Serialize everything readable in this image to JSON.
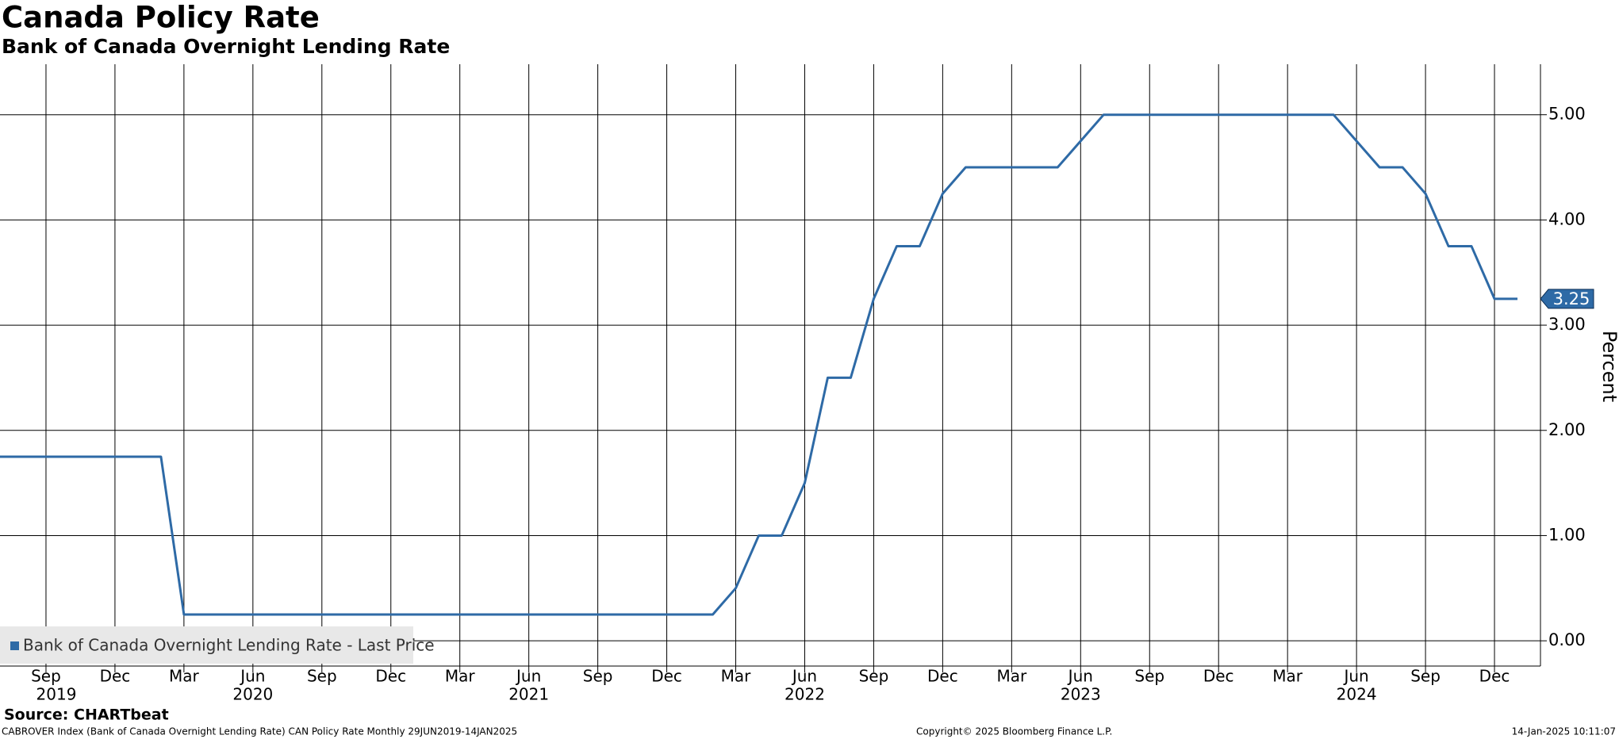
{
  "chart_data": {
    "type": "line",
    "title": "Canada Policy Rate",
    "subtitle": "Bank of Canada Overnight Lending Rate",
    "y_label": "Percent",
    "source": "Source: CHARTbeat",
    "footer_left": "CABROVER Index (Bank of Canada Overnight Lending Rate) CAN Policy Rate  Monthly 29JUN2019-14JAN2025",
    "footer_center": "Copyright© 2025 Bloomberg Finance L.P.",
    "footer_right": "14-Jan-2025 10:11:07",
    "grid": true,
    "legend": "lower left",
    "x": [
      "2019-07",
      "2019-08",
      "2019-09",
      "2019-10",
      "2019-11",
      "2019-12",
      "2020-01",
      "2020-02",
      "2020-03",
      "2020-04",
      "2020-05",
      "2020-06",
      "2020-07",
      "2020-08",
      "2020-09",
      "2020-10",
      "2020-11",
      "2020-12",
      "2021-01",
      "2021-02",
      "2021-03",
      "2021-04",
      "2021-05",
      "2021-06",
      "2021-07",
      "2021-08",
      "2021-09",
      "2021-10",
      "2021-11",
      "2021-12",
      "2022-01",
      "2022-02",
      "2022-03",
      "2022-04",
      "2022-05",
      "2022-06",
      "2022-07",
      "2022-08",
      "2022-09",
      "2022-10",
      "2022-11",
      "2022-12",
      "2023-01",
      "2023-02",
      "2023-03",
      "2023-04",
      "2023-05",
      "2023-06",
      "2023-07",
      "2023-08",
      "2023-09",
      "2023-10",
      "2023-11",
      "2023-12",
      "2024-01",
      "2024-02",
      "2024-03",
      "2024-04",
      "2024-05",
      "2024-06",
      "2024-07",
      "2024-08",
      "2024-09",
      "2024-10",
      "2024-11",
      "2024-12",
      "2025-01"
    ],
    "series": [
      {
        "name": "Bank of Canada Overnight Lending Rate - Last Price",
        "color": "#2e6aa6",
        "values": [
          1.75,
          1.75,
          1.75,
          1.75,
          1.75,
          1.75,
          1.75,
          1.75,
          0.25,
          0.25,
          0.25,
          0.25,
          0.25,
          0.25,
          0.25,
          0.25,
          0.25,
          0.25,
          0.25,
          0.25,
          0.25,
          0.25,
          0.25,
          0.25,
          0.25,
          0.25,
          0.25,
          0.25,
          0.25,
          0.25,
          0.25,
          0.25,
          0.5,
          1.0,
          1.0,
          1.5,
          2.5,
          2.5,
          3.25,
          3.75,
          3.75,
          4.25,
          4.5,
          4.5,
          4.5,
          4.5,
          4.5,
          4.75,
          5.0,
          5.0,
          5.0,
          5.0,
          5.0,
          5.0,
          5.0,
          5.0,
          5.0,
          5.0,
          5.0,
          4.75,
          4.5,
          4.5,
          4.25,
          3.75,
          3.75,
          3.25,
          3.25
        ]
      }
    ],
    "xlim": [
      "2019-07",
      "2025-02"
    ],
    "xticks": [
      {
        "value": "2019-09",
        "label": "Sep"
      },
      {
        "value": "2019-12",
        "label": "Dec"
      },
      {
        "value": "2020-03",
        "label": "Mar"
      },
      {
        "value": "2020-06",
        "label": "Jun"
      },
      {
        "value": "2020-09",
        "label": "Sep"
      },
      {
        "value": "2020-12",
        "label": "Dec"
      },
      {
        "value": "2021-03",
        "label": "Mar"
      },
      {
        "value": "2021-06",
        "label": "Jun"
      },
      {
        "value": "2021-09",
        "label": "Sep"
      },
      {
        "value": "2021-12",
        "label": "Dec"
      },
      {
        "value": "2022-03",
        "label": "Mar"
      },
      {
        "value": "2022-06",
        "label": "Jun"
      },
      {
        "value": "2022-09",
        "label": "Sep"
      },
      {
        "value": "2022-12",
        "label": "Dec"
      },
      {
        "value": "2023-03",
        "label": "Mar"
      },
      {
        "value": "2023-06",
        "label": "Jun"
      },
      {
        "value": "2023-09",
        "label": "Sep"
      },
      {
        "value": "2023-12",
        "label": "Dec"
      },
      {
        "value": "2024-03",
        "label": "Mar"
      },
      {
        "value": "2024-06",
        "label": "Jun"
      },
      {
        "value": "2024-09",
        "label": "Sep"
      },
      {
        "value": "2024-12",
        "label": "Dec"
      }
    ],
    "year_ticks": [
      {
        "value": "2019-09",
        "label": "2019"
      },
      {
        "value": "2020-06",
        "label": "2020"
      },
      {
        "value": "2021-06",
        "label": "2021"
      },
      {
        "value": "2022-06",
        "label": "2022"
      },
      {
        "value": "2023-06",
        "label": "2023"
      },
      {
        "value": "2024-06",
        "label": "2024"
      }
    ],
    "ylim": [
      -0.24,
      5.48
    ],
    "yticks": [
      {
        "value": 0,
        "label": "0.00"
      },
      {
        "value": 1,
        "label": "1.00"
      },
      {
        "value": 2,
        "label": "2.00"
      },
      {
        "value": 3,
        "label": "3.00"
      },
      {
        "value": 4,
        "label": "4.00"
      },
      {
        "value": 5,
        "label": "5.00"
      }
    ]
  }
}
